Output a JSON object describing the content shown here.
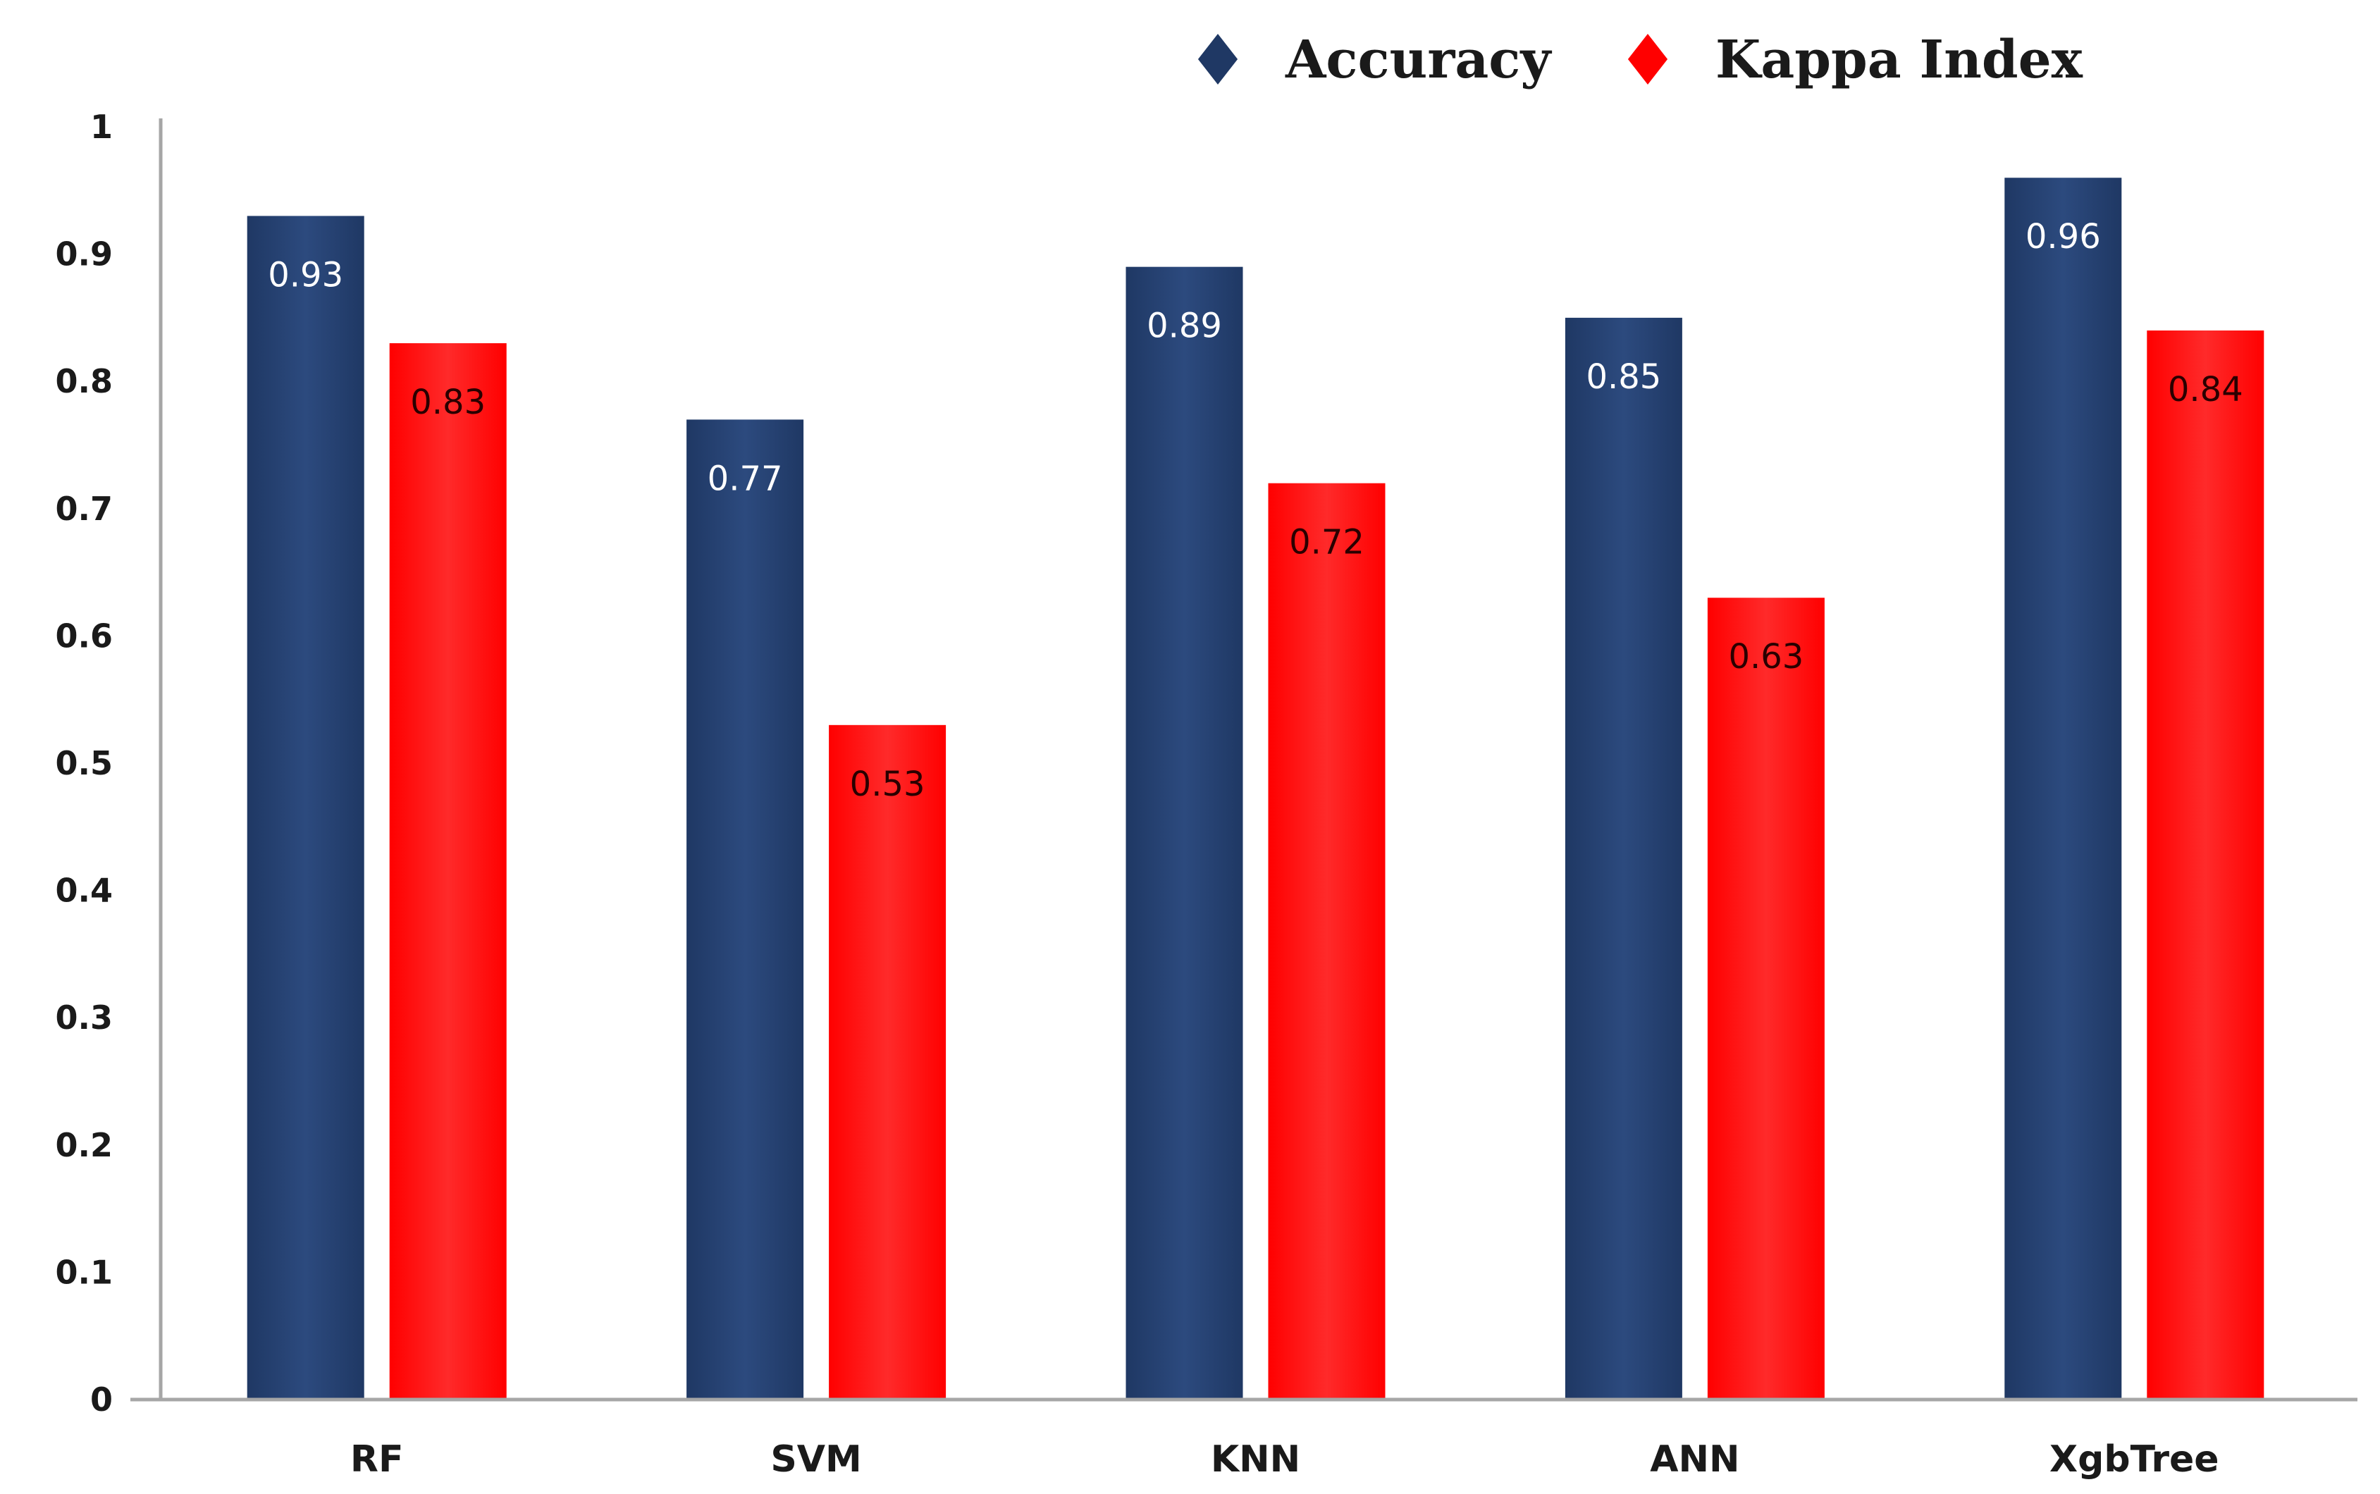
{
  "chart_data": {
    "type": "bar",
    "title": "",
    "xlabel": "",
    "ylabel": "",
    "categories": [
      "RF",
      "SVM",
      "KNN",
      "ANN",
      "XgbTree"
    ],
    "series": [
      {
        "name": "Accuracy",
        "values": [
          0.93,
          0.77,
          0.89,
          0.85,
          0.96
        ],
        "color": "#1f3864",
        "label_color": "#ffffff"
      },
      {
        "name": "Kappa Index",
        "values": [
          0.83,
          0.53,
          0.72,
          0.63,
          0.84
        ],
        "color": "#ff0000",
        "label_color": "#2a0000"
      }
    ],
    "ylim": [
      0,
      1
    ],
    "yticks": [
      "0",
      "0.1",
      "0.2",
      "0.3",
      "0.4",
      "0.5",
      "0.6",
      "0.7",
      "0.8",
      "0.9",
      "1"
    ],
    "grid": false,
    "legend": {
      "placement": "top-right",
      "marker": "diamond"
    },
    "axis_color": "#a6a6a6"
  }
}
